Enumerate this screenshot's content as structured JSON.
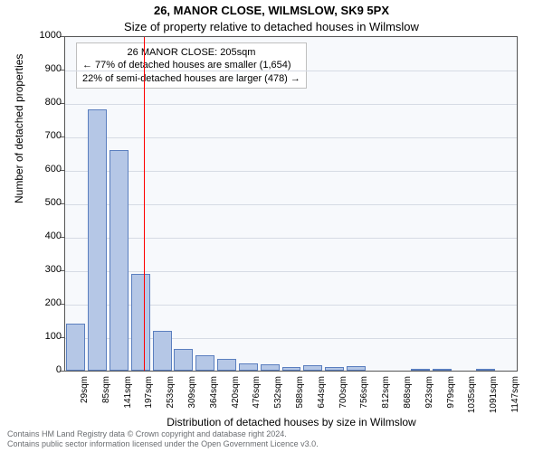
{
  "title": "26, MANOR CLOSE, WILMSLOW, SK9 5PX",
  "subtitle": "Size of property relative to detached houses in Wilmslow",
  "ylabel": "Number of detached properties",
  "xlabel": "Distribution of detached houses by size in Wilmslow",
  "chart": {
    "type": "histogram",
    "background_color": "#f7f9fc",
    "grid_color": "#d6dbe4",
    "bar_fill": "#b5c7e6",
    "bar_border": "#5b7fbf",
    "axis_color": "#555555",
    "ylim": [
      0,
      1000
    ],
    "ytick_step": 100,
    "categories": [
      "29sqm",
      "85sqm",
      "141sqm",
      "197sqm",
      "253sqm",
      "309sqm",
      "364sqm",
      "420sqm",
      "476sqm",
      "532sqm",
      "588sqm",
      "644sqm",
      "700sqm",
      "756sqm",
      "812sqm",
      "868sqm",
      "923sqm",
      "979sqm",
      "1035sqm",
      "1091sqm",
      "1147sqm"
    ],
    "values": [
      140,
      780,
      660,
      290,
      120,
      65,
      45,
      35,
      22,
      18,
      12,
      16,
      10,
      14,
      0,
      0,
      5,
      4,
      0,
      6,
      0
    ],
    "tick_label_fontsize": 10,
    "axis_label_fontsize": 12
  },
  "marker": {
    "value_sqm": 205,
    "color": "#ff0000"
  },
  "callout": {
    "line1": "26 MANOR CLOSE: 205sqm",
    "line2": "← 77% of detached houses are smaller (1,654)",
    "line3": "22% of semi-detached houses are larger (478) →"
  },
  "footer": {
    "line1": "Contains HM Land Registry data © Crown copyright and database right 2024.",
    "line2": "Contains public sector information licensed under the Open Government Licence v3.0."
  }
}
